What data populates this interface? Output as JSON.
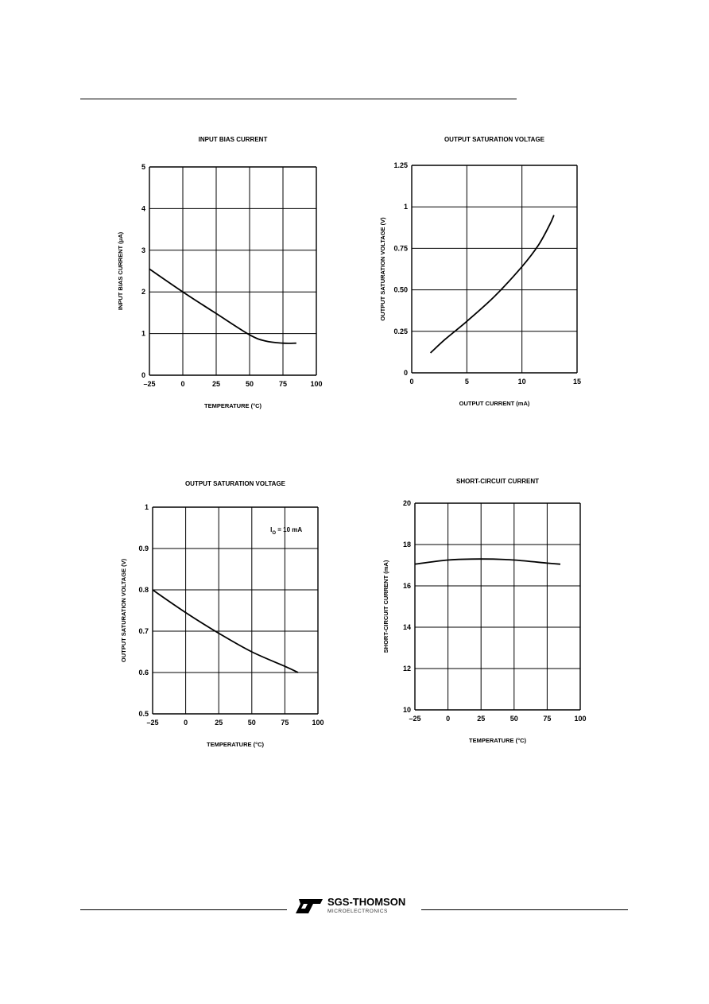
{
  "footer": {
    "brand": "SGS-THOMSON",
    "subtitle": "MICROELECTRONICS",
    "logo_icon": "st-logo-icon"
  },
  "chart_data": [
    {
      "type": "line",
      "title": "INPUT BIAS CURRENT",
      "xlabel": "TEMPERATURE (°C)",
      "ylabel": "INPUT BIAS CURRENT (μA)",
      "xlim": [
        -25,
        100
      ],
      "ylim": [
        0,
        5
      ],
      "xticks": [
        -25,
        0,
        25,
        50,
        75,
        100
      ],
      "xtick_labels": [
        "–25",
        "0",
        "25",
        "50",
        "75",
        "100"
      ],
      "yticks": [
        0,
        1,
        2,
        3,
        4,
        5
      ],
      "ytick_labels": [
        "0",
        "1",
        "2",
        "3",
        "4",
        "5"
      ],
      "grid": true,
      "series": [
        {
          "x": [
            -25,
            0,
            25,
            50,
            62,
            75,
            85
          ],
          "y": [
            2.55,
            2.0,
            1.48,
            0.97,
            0.82,
            0.77,
            0.77
          ]
        }
      ]
    },
    {
      "type": "line",
      "title": "OUTPUT SATURATION VOLTAGE",
      "xlabel": "OUTPUT CURRENT (mA)",
      "ylabel": "OUTPUT SATURATION VOLTAGE (V)",
      "xlim": [
        0,
        15
      ],
      "ylim": [
        0,
        1.25
      ],
      "xticks": [
        0,
        5,
        10,
        15
      ],
      "xtick_labels": [
        "0",
        "5",
        "10",
        "15"
      ],
      "yticks": [
        0,
        0.25,
        0.5,
        0.75,
        1,
        1.25
      ],
      "ytick_labels": [
        "0",
        "0.25",
        "0.50",
        "0.75",
        "1",
        "1.25"
      ],
      "grid": true,
      "series": [
        {
          "x": [
            1.7,
            3,
            5,
            7.5,
            10,
            11.5,
            12.5,
            12.9
          ],
          "y": [
            0.12,
            0.2,
            0.31,
            0.46,
            0.64,
            0.77,
            0.89,
            0.95
          ]
        }
      ]
    },
    {
      "type": "line",
      "title": "OUTPUT SATURATION VOLTAGE",
      "xlabel": "TEMPERATURE (°C)",
      "ylabel": "OUTPUT SATURATION VOLTAGE (V)",
      "annotation": {
        "main": "I",
        "sub": "O",
        "rest": " = 10 mA"
      },
      "xlim": [
        -25,
        100
      ],
      "ylim": [
        0.5,
        1
      ],
      "xticks": [
        -25,
        0,
        25,
        50,
        75,
        100
      ],
      "xtick_labels": [
        "–25",
        "0",
        "25",
        "50",
        "75",
        "100"
      ],
      "yticks": [
        0.5,
        0.6,
        0.7,
        0.8,
        0.9,
        1
      ],
      "ytick_labels": [
        "0.5",
        "0.6",
        "0.7",
        "0.8",
        "0.9",
        "1"
      ],
      "grid": true,
      "series": [
        {
          "x": [
            -25,
            0,
            25,
            50,
            75,
            85
          ],
          "y": [
            0.8,
            0.745,
            0.695,
            0.65,
            0.615,
            0.6
          ]
        }
      ]
    },
    {
      "type": "line",
      "title": "SHORT-CIRCUIT CURRENT",
      "xlabel": "TEMPERATURE (°C)",
      "ylabel": "SHORT-CIRCUIT CURRENT (mA)",
      "xlim": [
        -25,
        100
      ],
      "ylim": [
        10,
        20
      ],
      "xticks": [
        -25,
        0,
        25,
        50,
        75,
        100
      ],
      "xtick_labels": [
        "–25",
        "0",
        "25",
        "50",
        "75",
        "100"
      ],
      "yticks": [
        10,
        12,
        14,
        16,
        18,
        20
      ],
      "ytick_labels": [
        "10",
        "12",
        "14",
        "16",
        "18",
        "20"
      ],
      "grid": true,
      "series": [
        {
          "x": [
            -25,
            0,
            25,
            50,
            75,
            85
          ],
          "y": [
            17.05,
            17.25,
            17.3,
            17.25,
            17.1,
            17.05
          ]
        }
      ]
    }
  ]
}
